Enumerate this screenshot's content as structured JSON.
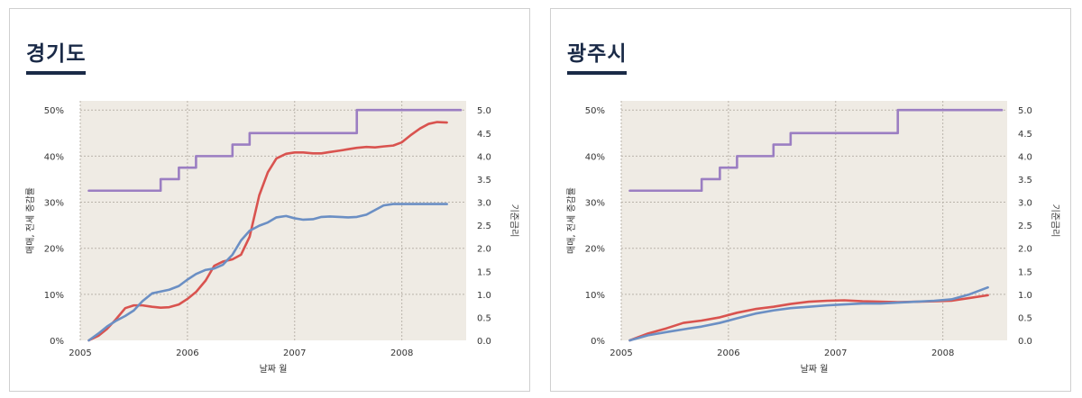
{
  "chart_data": [
    {
      "type": "line",
      "title": "경기도",
      "xlabel": "날짜 월",
      "ylabel": "매매, 전세 증감률",
      "y2label": "기준금리",
      "xlim": [
        2005.0,
        2008.6
      ],
      "xticks": [
        "2005",
        "2006",
        "2007",
        "2008"
      ],
      "ylim": [
        0,
        52
      ],
      "yticks": [
        "0%",
        "10%",
        "20%",
        "30%",
        "40%",
        "50%"
      ],
      "y2lim": [
        0,
        5.2
      ],
      "y2ticks": [
        "0.0",
        "0.5",
        "1.0",
        "1.5",
        "2.0",
        "2.5",
        "3.0",
        "3.5",
        "4.0",
        "4.5",
        "5.0"
      ],
      "grid": true,
      "series": [
        {
          "name": "기준금리",
          "axis": "right",
          "color": "#9b7ec2",
          "step": true,
          "x": [
            2005.08,
            2005.75,
            2005.83,
            2005.92,
            2006.0,
            2006.08,
            2006.33,
            2006.42,
            2006.58,
            2007.42,
            2007.58,
            2008.55
          ],
          "values": [
            3.25,
            3.5,
            3.5,
            3.75,
            3.75,
            4.0,
            4.0,
            4.25,
            4.5,
            4.5,
            5.0,
            5.0
          ]
        },
        {
          "name": "매매 증감률",
          "axis": "left",
          "color": "#d9534f",
          "x": [
            2005.08,
            2005.17,
            2005.25,
            2005.33,
            2005.42,
            2005.5,
            2005.58,
            2005.67,
            2005.75,
            2005.83,
            2005.92,
            2006.0,
            2006.08,
            2006.17,
            2006.25,
            2006.33,
            2006.42,
            2006.5,
            2006.58,
            2006.67,
            2006.75,
            2006.83,
            2006.92,
            2007.0,
            2007.08,
            2007.17,
            2007.25,
            2007.33,
            2007.42,
            2007.5,
            2007.58,
            2007.67,
            2007.75,
            2007.83,
            2007.92,
            2008.0,
            2008.08,
            2008.17,
            2008.25,
            2008.33,
            2008.42
          ],
          "values": [
            0,
            1,
            2.5,
            4.5,
            7,
            7.6,
            7.6,
            7.3,
            7.1,
            7.2,
            7.8,
            9,
            10.5,
            13,
            16.2,
            17.1,
            17.6,
            18.6,
            22.5,
            31.5,
            36.5,
            39.5,
            40.5,
            40.8,
            40.8,
            40.6,
            40.6,
            40.9,
            41.2,
            41.5,
            41.8,
            42.0,
            41.9,
            42.1,
            42.3,
            43.0,
            44.5,
            46.0,
            47.0,
            47.4,
            47.3
          ]
        },
        {
          "name": "전세 증감률",
          "axis": "left",
          "color": "#6b8fc4",
          "x": [
            2005.08,
            2005.17,
            2005.25,
            2005.33,
            2005.42,
            2005.5,
            2005.58,
            2005.67,
            2005.75,
            2005.83,
            2005.92,
            2006.0,
            2006.08,
            2006.17,
            2006.25,
            2006.33,
            2006.42,
            2006.5,
            2006.58,
            2006.67,
            2006.75,
            2006.83,
            2006.92,
            2007.0,
            2007.08,
            2007.17,
            2007.25,
            2007.33,
            2007.42,
            2007.5,
            2007.58,
            2007.67,
            2007.75,
            2007.83,
            2007.92,
            2008.0,
            2008.08,
            2008.17,
            2008.25,
            2008.33,
            2008.42
          ],
          "values": [
            0,
            1.5,
            3,
            4.2,
            5.3,
            6.5,
            8.5,
            10.2,
            10.6,
            11.0,
            11.8,
            13.2,
            14.4,
            15.3,
            15.6,
            16.4,
            18.6,
            21.7,
            23.8,
            24.9,
            25.6,
            26.7,
            27.0,
            26.5,
            26.2,
            26.3,
            26.8,
            26.9,
            26.8,
            26.7,
            26.8,
            27.3,
            28.3,
            29.3,
            29.6,
            29.6,
            29.6,
            29.6,
            29.6,
            29.6,
            29.6
          ]
        }
      ]
    },
    {
      "type": "line",
      "title": "광주시",
      "xlabel": "날짜 월",
      "ylabel": "매매, 전세 증감률",
      "y2label": "기준금리",
      "xlim": [
        2005.0,
        2008.6
      ],
      "xticks": [
        "2005",
        "2006",
        "2007",
        "2008"
      ],
      "ylim": [
        0,
        52
      ],
      "yticks": [
        "0%",
        "10%",
        "20%",
        "30%",
        "40%",
        "50%"
      ],
      "y2lim": [
        0,
        5.2
      ],
      "y2ticks": [
        "0.0",
        "0.5",
        "1.0",
        "1.5",
        "2.0",
        "2.5",
        "3.0",
        "3.5",
        "4.0",
        "4.5",
        "5.0"
      ],
      "grid": true,
      "series": [
        {
          "name": "기준금리",
          "axis": "right",
          "color": "#9b7ec2",
          "step": true,
          "x": [
            2005.08,
            2005.75,
            2005.83,
            2005.92,
            2006.0,
            2006.08,
            2006.33,
            2006.42,
            2006.58,
            2007.42,
            2007.58,
            2008.55
          ],
          "values": [
            3.25,
            3.5,
            3.5,
            3.75,
            3.75,
            4.0,
            4.0,
            4.25,
            4.5,
            4.5,
            5.0,
            5.0
          ]
        },
        {
          "name": "매매 증감률",
          "axis": "left",
          "color": "#d9534f",
          "x": [
            2005.08,
            2005.25,
            2005.42,
            2005.58,
            2005.75,
            2005.92,
            2006.08,
            2006.25,
            2006.42,
            2006.58,
            2006.75,
            2006.92,
            2007.08,
            2007.25,
            2007.42,
            2007.58,
            2007.75,
            2007.92,
            2008.08,
            2008.25,
            2008.42
          ],
          "values": [
            0,
            1.5,
            2.6,
            3.8,
            4.3,
            5.0,
            6.0,
            6.8,
            7.3,
            7.9,
            8.4,
            8.6,
            8.7,
            8.5,
            8.4,
            8.3,
            8.4,
            8.5,
            8.6,
            9.2,
            9.8
          ]
        },
        {
          "name": "전세 증감률",
          "axis": "left",
          "color": "#6b8fc4",
          "x": [
            2005.08,
            2005.25,
            2005.42,
            2005.58,
            2005.75,
            2005.92,
            2006.08,
            2006.25,
            2006.42,
            2006.58,
            2006.75,
            2006.92,
            2007.08,
            2007.25,
            2007.42,
            2007.58,
            2007.75,
            2007.92,
            2008.08,
            2008.25,
            2008.42
          ],
          "values": [
            0,
            1.1,
            1.8,
            2.4,
            3.0,
            3.8,
            4.8,
            5.8,
            6.5,
            7.0,
            7.3,
            7.6,
            7.8,
            8.0,
            8.0,
            8.2,
            8.4,
            8.6,
            8.9,
            10.0,
            11.5
          ]
        }
      ]
    }
  ]
}
